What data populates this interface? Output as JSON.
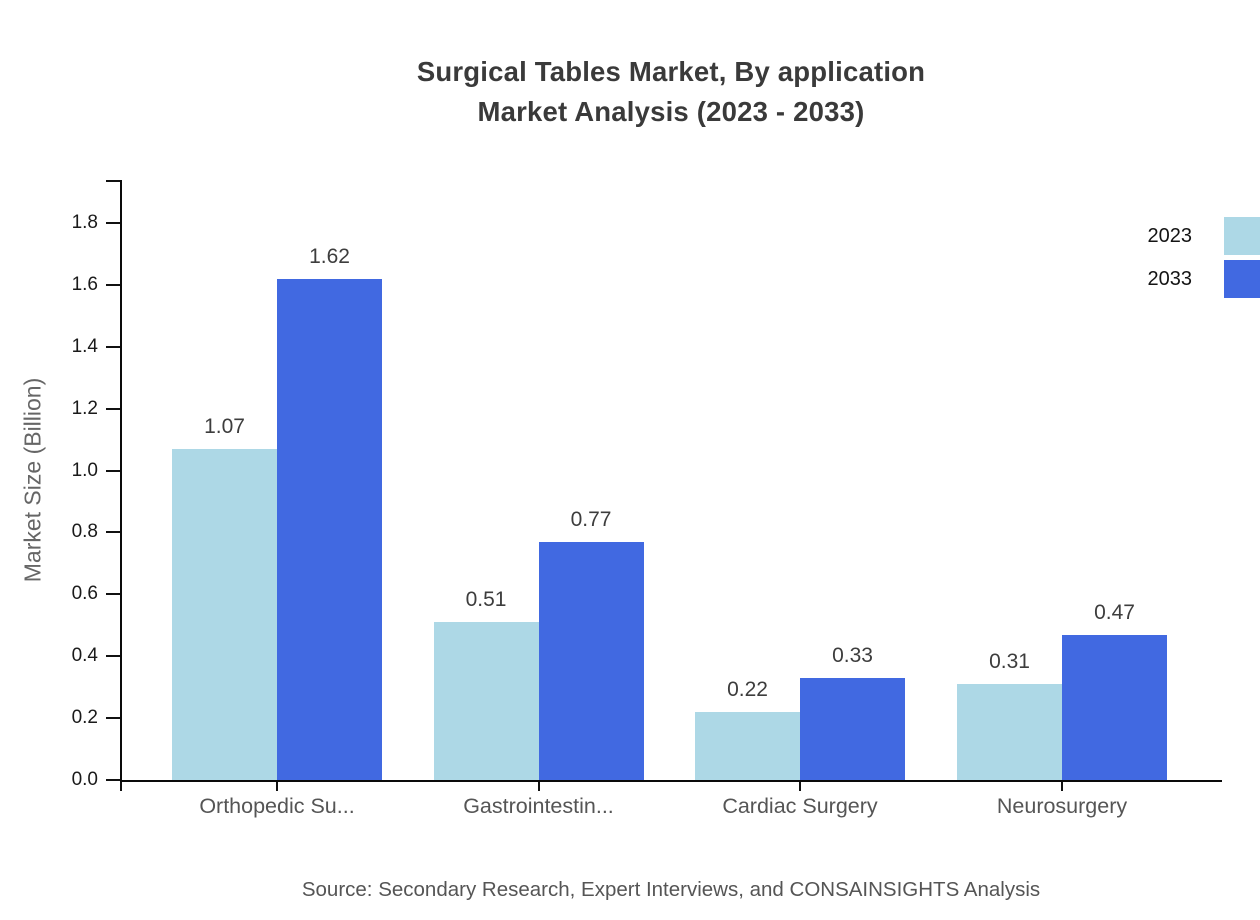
{
  "title": {
    "line1": "Surgical Tables Market, By application",
    "line2": "Market Analysis (2023 - 2033)"
  },
  "chart_data": {
    "type": "bar",
    "categories": [
      "Orthopedic Su...",
      "Gastrointestin...",
      "Cardiac Surgery",
      "Neurosurgery"
    ],
    "series": [
      {
        "name": "2023",
        "color": "#ADD8E6",
        "values": [
          1.07,
          0.51,
          0.22,
          0.31
        ]
      },
      {
        "name": "2033",
        "color": "#4169E1",
        "values": [
          1.62,
          0.77,
          0.33,
          0.47
        ]
      }
    ],
    "title": "Surgical Tables Market, By application Market Analysis (2023 - 2033)",
    "xlabel": "",
    "ylabel": "Market Size (Billion)",
    "yticks": [
      0.0,
      0.2,
      0.4,
      0.6,
      0.8,
      1.0,
      1.2,
      1.4,
      1.6,
      1.8
    ],
    "ylim": [
      0,
      1.94
    ],
    "grid": false,
    "legend_position": "top-right",
    "value_label_decimals": 2
  },
  "source": "Source: Secondary Research, Expert Interviews, and CONSAINSIGHTS Analysis"
}
